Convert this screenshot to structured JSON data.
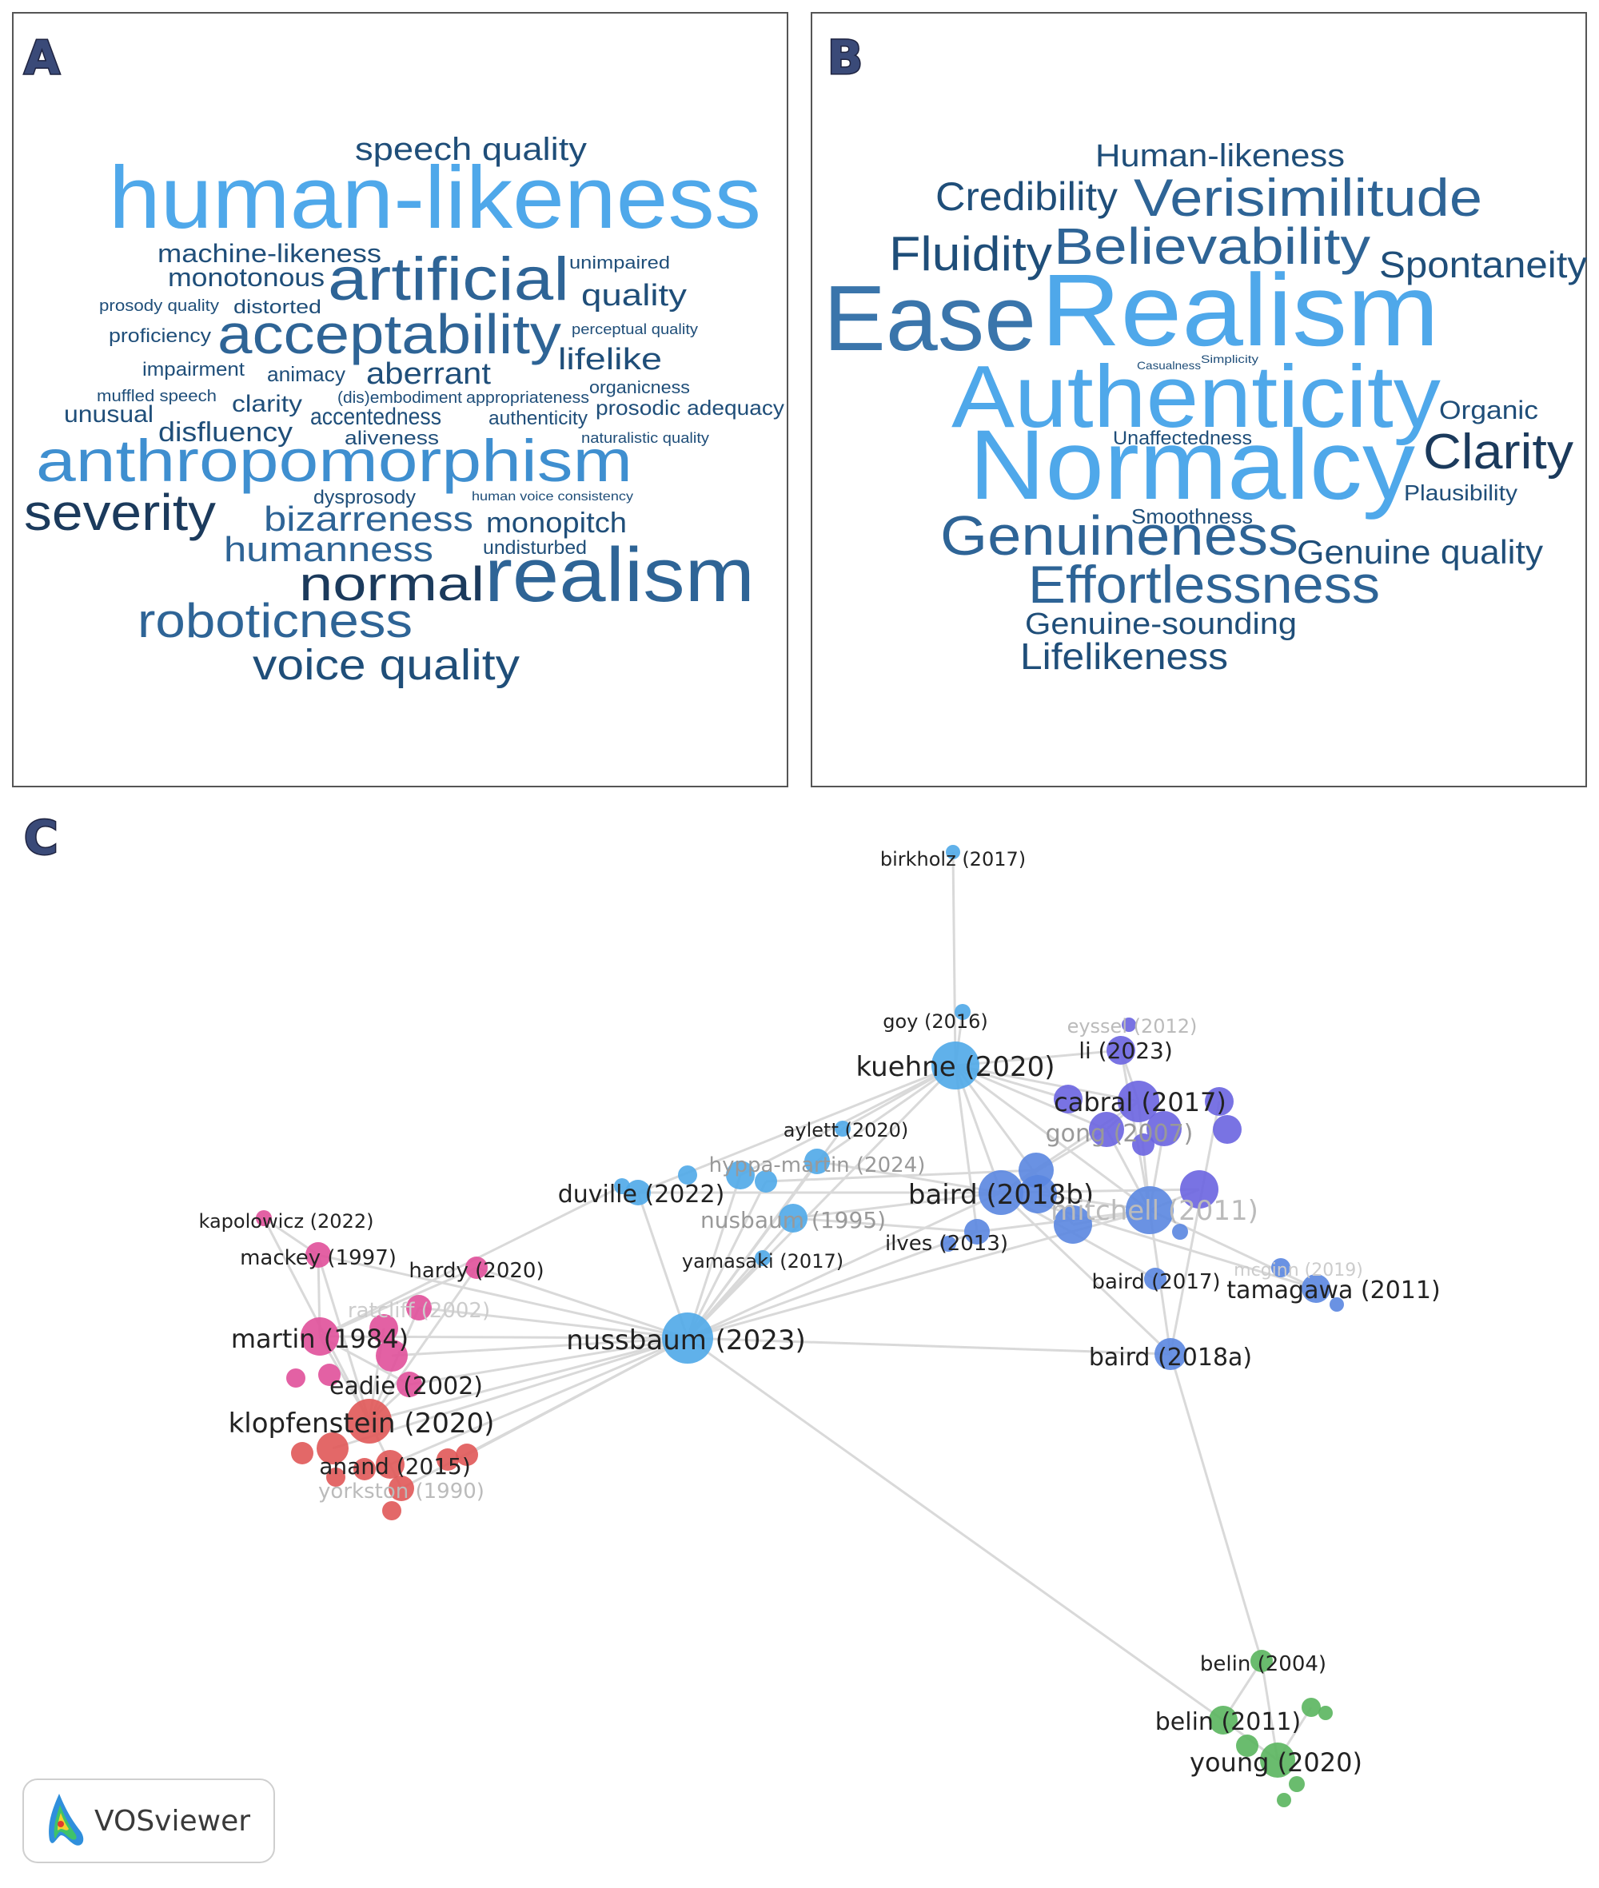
{
  "panels": {
    "a": {
      "letter": "A"
    },
    "b": {
      "letter": "B"
    },
    "c": {
      "letter": "C"
    }
  },
  "wordcloud_a": [
    {
      "text": "speech quality",
      "color": "#1f4e79"
    },
    {
      "text": "human-likeness",
      "color": "#4fa8ea"
    },
    {
      "text": "machine-likeness",
      "color": "#1f4e79"
    },
    {
      "text": "unimpaired",
      "color": "#1f4e79"
    },
    {
      "text": "monotonous",
      "color": "#1f4e79"
    },
    {
      "text": "artificial",
      "color": "#2e6496"
    },
    {
      "text": "prosody quality",
      "color": "#1f4e79"
    },
    {
      "text": "distorted",
      "color": "#1f4e79"
    },
    {
      "text": "quality",
      "color": "#1f4e79"
    },
    {
      "text": "proficiency",
      "color": "#1f4e79"
    },
    {
      "text": "acceptability",
      "color": "#2e6496"
    },
    {
      "text": "perceptual quality",
      "color": "#1f4e79"
    },
    {
      "text": "impairment",
      "color": "#1f4e79"
    },
    {
      "text": "animacy",
      "color": "#1f4e79"
    },
    {
      "text": "aberrant",
      "color": "#1f4e79"
    },
    {
      "text": "lifelike",
      "color": "#1f4e79"
    },
    {
      "text": "muffled speech",
      "color": "#1f4e79"
    },
    {
      "text": "clarity",
      "color": "#1f4e79"
    },
    {
      "text": "(dis)embodiment",
      "color": "#1f4e79"
    },
    {
      "text": "appropriateness",
      "color": "#1f4e79"
    },
    {
      "text": "organicness",
      "color": "#1f4e79"
    },
    {
      "text": "unusual",
      "color": "#1f4e79"
    },
    {
      "text": "accentedness",
      "color": "#1f4e79"
    },
    {
      "text": "authenticity",
      "color": "#1f4e79"
    },
    {
      "text": "prosodic adequacy",
      "color": "#1f4e79"
    },
    {
      "text": "disfluency",
      "color": "#1f4e79"
    },
    {
      "text": "aliveness",
      "color": "#1f4e79"
    },
    {
      "text": "naturalistic quality",
      "color": "#1f4e79"
    },
    {
      "text": "anthropomorphism",
      "color": "#3f8fd0"
    },
    {
      "text": "severity",
      "color": "#1b3a5c"
    },
    {
      "text": "dysprosody",
      "color": "#1f4e79"
    },
    {
      "text": "human voice consistency",
      "color": "#1f4e79"
    },
    {
      "text": "bizarreness",
      "color": "#2e6496"
    },
    {
      "text": "monopitch",
      "color": "#1f4e79"
    },
    {
      "text": "undisturbed",
      "color": "#1f4e79"
    },
    {
      "text": "humanness",
      "color": "#2e6496"
    },
    {
      "text": "normal",
      "color": "#1b3a5c"
    },
    {
      "text": "realism",
      "color": "#2e6496"
    },
    {
      "text": "roboticness",
      "color": "#2e6496"
    },
    {
      "text": "voice quality",
      "color": "#1f4e79"
    }
  ],
  "wordcloud_b": [
    {
      "text": "Human-likeness",
      "color": "#1f4e79"
    },
    {
      "text": "Credibility",
      "color": "#1f4e79"
    },
    {
      "text": "Verisimilitude",
      "color": "#2e6496"
    },
    {
      "text": "Fluidity",
      "color": "#1f4e79"
    },
    {
      "text": "Believability",
      "color": "#2e6496"
    },
    {
      "text": "Spontaneity",
      "color": "#1f4e79"
    },
    {
      "text": "Ease",
      "color": "#3a75ab"
    },
    {
      "text": "Realism",
      "color": "#4fa8ea"
    },
    {
      "text": "Casualness",
      "color": "#1f4e79"
    },
    {
      "text": "Simplicity",
      "color": "#1f4e79"
    },
    {
      "text": "Authenticity",
      "color": "#4fa8ea"
    },
    {
      "text": "Organic",
      "color": "#1f4e79"
    },
    {
      "text": "Unaffectedness",
      "color": "#1f4e79"
    },
    {
      "text": "Normalcy",
      "color": "#4fa8ea"
    },
    {
      "text": "Clarity",
      "color": "#1b3a5c"
    },
    {
      "text": "Plausibility",
      "color": "#1f4e79"
    },
    {
      "text": "Smoothness",
      "color": "#1f4e79"
    },
    {
      "text": "Genuineness",
      "color": "#2e6496"
    },
    {
      "text": "Genuine quality",
      "color": "#1f4e79"
    },
    {
      "text": "Effortlessness",
      "color": "#2e6496"
    },
    {
      "text": "Genuine-sounding",
      "color": "#1f4e79"
    },
    {
      "text": "Lifelikeness",
      "color": "#1f4e79"
    }
  ],
  "network": {
    "colors": {
      "red": "#e05858",
      "pink": "#e0509a",
      "lightblue": "#4fa8e8",
      "blue": "#5a86e0",
      "purple": "#6a64e0",
      "green": "#5ab55e",
      "edge": "#d9d9d9"
    },
    "labels": [
      {
        "text": "birkholz (2017)",
        "color": "#222222"
      },
      {
        "text": "goy (2016)",
        "color": "#222222"
      },
      {
        "text": "eyssel (2012)",
        "color": "#bbbbbb"
      },
      {
        "text": "li (2023)",
        "color": "#222222"
      },
      {
        "text": "kuehne (2020)",
        "color": "#222222"
      },
      {
        "text": "cabral (2017)",
        "color": "#222222"
      },
      {
        "text": "aylett (2020)",
        "color": "#222222"
      },
      {
        "text": "gong (2007)",
        "color": "#999999"
      },
      {
        "text": "hyppa-martin (2024)",
        "color": "#999999"
      },
      {
        "text": "duville (2022)",
        "color": "#222222"
      },
      {
        "text": "baird (2018b)",
        "color": "#222222"
      },
      {
        "text": "mitchell (2011)",
        "color": "#bbbbbb"
      },
      {
        "text": "nusbaum (1995)",
        "color": "#999999"
      },
      {
        "text": "ilves (2013)",
        "color": "#222222"
      },
      {
        "text": "kapolowicz (2022)",
        "color": "#222222"
      },
      {
        "text": "yamasaki (2017)",
        "color": "#222222"
      },
      {
        "text": "mackey (1997)",
        "color": "#222222"
      },
      {
        "text": "hardy (2020)",
        "color": "#222222"
      },
      {
        "text": "baird (2017)",
        "color": "#222222"
      },
      {
        "text": "tamagawa (2011)",
        "color": "#222222"
      },
      {
        "text": "mcginn (2019)",
        "color": "#cccccc"
      },
      {
        "text": "ratcliff (2002)",
        "color": "#cccccc"
      },
      {
        "text": "martin (1984)",
        "color": "#222222"
      },
      {
        "text": "nussbaum (2023)",
        "color": "#222222"
      },
      {
        "text": "eadie (2002)",
        "color": "#222222"
      },
      {
        "text": "baird (2018a)",
        "color": "#222222"
      },
      {
        "text": "klopfenstein (2020)",
        "color": "#222222"
      },
      {
        "text": "anand (2015)",
        "color": "#222222"
      },
      {
        "text": "yorkston (1990)",
        "color": "#bbbbbb"
      },
      {
        "text": "belin (2004)",
        "color": "#222222"
      },
      {
        "text": "belin (2011)",
        "color": "#222222"
      },
      {
        "text": "young (2020)",
        "color": "#222222"
      }
    ]
  },
  "legend": {
    "label": "VOSviewer"
  }
}
